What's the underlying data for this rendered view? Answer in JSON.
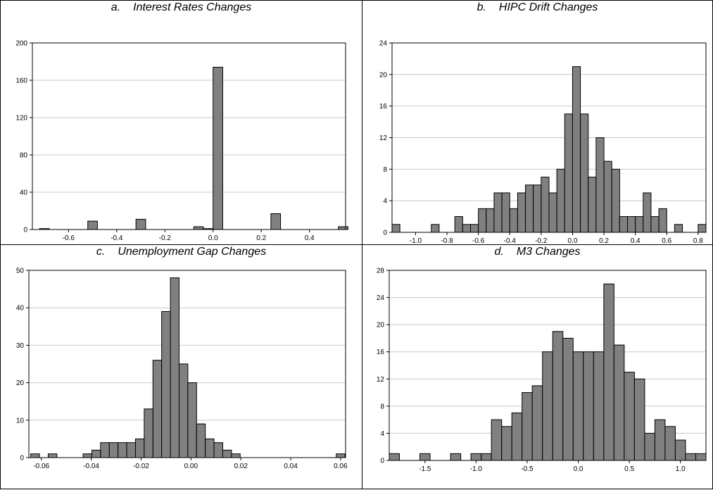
{
  "chart_data": [
    {
      "type": "bar",
      "panel_label": "a.",
      "title": "Interest Rates Changes",
      "xlim": [
        -0.75,
        0.55
      ],
      "ylim": [
        0,
        200
      ],
      "yticks": [
        0,
        40,
        80,
        120,
        160,
        200
      ],
      "xticks": [
        -0.6,
        -0.4,
        -0.2,
        0.0,
        0.2,
        0.4
      ],
      "xtick_labels": [
        "-0.6",
        "-0.4",
        "-0.2",
        "0.0",
        "0.2",
        "0.4"
      ],
      "bar_width": 0.04,
      "bars": [
        {
          "x": -0.7,
          "value": 1
        },
        {
          "x": -0.5,
          "value": 9
        },
        {
          "x": -0.3,
          "value": 0
        },
        {
          "x": -0.3,
          "value": 11
        },
        {
          "x": -0.06,
          "value": 3
        },
        {
          "x": -0.02,
          "value": 1
        },
        {
          "x": 0.02,
          "value": 174
        },
        {
          "x": 0.26,
          "value": 17
        },
        {
          "x": 0.54,
          "value": 3
        }
      ],
      "grid": true
    },
    {
      "type": "bar",
      "panel_label": "b.",
      "title": "HIPC Drift Changes",
      "xlim": [
        -1.15,
        0.85
      ],
      "ylim": [
        0,
        24
      ],
      "yticks": [
        0,
        4,
        8,
        12,
        16,
        20,
        24
      ],
      "xticks": [
        -1.0,
        -0.8,
        -0.6,
        -0.4,
        -0.2,
        0.0,
        0.2,
        0.4,
        0.6,
        0.8
      ],
      "xtick_labels": [
        "-1.0",
        "-0.8",
        "-0.6",
        "-0.4",
        "-0.2",
        "0.0",
        "0.2",
        "0.4",
        "0.6",
        "0.8"
      ],
      "bar_width": 0.05,
      "bars": [
        {
          "x": -1.125,
          "value": 1
        },
        {
          "x": -0.875,
          "value": 1
        },
        {
          "x": -0.725,
          "value": 2
        },
        {
          "x": -0.675,
          "value": 1
        },
        {
          "x": -0.625,
          "value": 1
        },
        {
          "x": -0.575,
          "value": 3
        },
        {
          "x": -0.525,
          "value": 3
        },
        {
          "x": -0.475,
          "value": 5
        },
        {
          "x": -0.425,
          "value": 5
        },
        {
          "x": -0.375,
          "value": 3
        },
        {
          "x": -0.325,
          "value": 5
        },
        {
          "x": -0.275,
          "value": 6
        },
        {
          "x": -0.225,
          "value": 6
        },
        {
          "x": -0.175,
          "value": 7
        },
        {
          "x": -0.125,
          "value": 5
        },
        {
          "x": -0.075,
          "value": 8
        },
        {
          "x": -0.025,
          "value": 15
        },
        {
          "x": 0.025,
          "value": 21
        },
        {
          "x": 0.075,
          "value": 15
        },
        {
          "x": 0.125,
          "value": 7
        },
        {
          "x": 0.175,
          "value": 12
        },
        {
          "x": 0.225,
          "value": 9
        },
        {
          "x": 0.275,
          "value": 8
        },
        {
          "x": 0.325,
          "value": 2
        },
        {
          "x": 0.375,
          "value": 2
        },
        {
          "x": 0.425,
          "value": 2
        },
        {
          "x": 0.475,
          "value": 5
        },
        {
          "x": 0.525,
          "value": 2
        },
        {
          "x": 0.575,
          "value": 3
        },
        {
          "x": 0.675,
          "value": 1
        },
        {
          "x": 0.825,
          "value": 1
        }
      ],
      "grid": true
    },
    {
      "type": "bar",
      "panel_label": "c.",
      "title": "Unemployment Gap Changes",
      "xlim": [
        -0.065,
        0.062
      ],
      "ylim": [
        0,
        50
      ],
      "yticks": [
        0,
        10,
        20,
        30,
        40,
        50
      ],
      "xticks": [
        -0.06,
        -0.04,
        -0.02,
        0.0,
        0.02,
        0.04,
        0.06
      ],
      "xtick_labels": [
        "-0.06",
        "-0.04",
        "-0.02",
        "0.00",
        "0.02",
        "0.04",
        "0.06"
      ],
      "bar_width": 0.0035,
      "bars": [
        {
          "x": -0.0625,
          "value": 1
        },
        {
          "x": -0.0555,
          "value": 1
        },
        {
          "x": -0.0485,
          "value": 0
        },
        {
          "x": -0.0415,
          "value": 1
        },
        {
          "x": -0.038,
          "value": 2
        },
        {
          "x": -0.0345,
          "value": 4
        },
        {
          "x": -0.031,
          "value": 4
        },
        {
          "x": -0.0275,
          "value": 4
        },
        {
          "x": -0.024,
          "value": 4
        },
        {
          "x": -0.0205,
          "value": 5
        },
        {
          "x": -0.017,
          "value": 13
        },
        {
          "x": -0.0135,
          "value": 26
        },
        {
          "x": -0.01,
          "value": 39
        },
        {
          "x": -0.0065,
          "value": 48
        },
        {
          "x": -0.003,
          "value": 25
        },
        {
          "x": 0.0005,
          "value": 20
        },
        {
          "x": 0.004,
          "value": 9
        },
        {
          "x": 0.0075,
          "value": 5
        },
        {
          "x": 0.011,
          "value": 4
        },
        {
          "x": 0.0145,
          "value": 2
        },
        {
          "x": 0.018,
          "value": 1
        },
        {
          "x": 0.06,
          "value": 1
        }
      ],
      "grid": true
    },
    {
      "type": "bar",
      "panel_label": "d.",
      "title": "M3 Changes",
      "xlim": [
        -1.85,
        1.25
      ],
      "ylim": [
        0,
        28
      ],
      "yticks": [
        0,
        4,
        8,
        12,
        16,
        20,
        24,
        28
      ],
      "xticks": [
        -1.5,
        -1.0,
        -0.5,
        0.0,
        0.5,
        1.0
      ],
      "xtick_labels": [
        "-1.5",
        "-1.0",
        "-0.5",
        "0.0",
        "0.5",
        "1.0"
      ],
      "bar_width": 0.1,
      "bars": [
        {
          "x": -1.8,
          "value": 1
        },
        {
          "x": -1.5,
          "value": 1
        },
        {
          "x": -1.2,
          "value": 1
        },
        {
          "x": -1.0,
          "value": 1
        },
        {
          "x": -0.9,
          "value": 1
        },
        {
          "x": -0.8,
          "value": 6
        },
        {
          "x": -0.7,
          "value": 5
        },
        {
          "x": -0.6,
          "value": 7
        },
        {
          "x": -0.5,
          "value": 10
        },
        {
          "x": -0.4,
          "value": 11
        },
        {
          "x": -0.3,
          "value": 16
        },
        {
          "x": -0.2,
          "value": 19
        },
        {
          "x": -0.1,
          "value": 18
        },
        {
          "x": 0.0,
          "value": 16
        },
        {
          "x": 0.1,
          "value": 16
        },
        {
          "x": 0.2,
          "value": 16
        },
        {
          "x": 0.3,
          "value": 26
        },
        {
          "x": 0.4,
          "value": 17
        },
        {
          "x": 0.5,
          "value": 13
        },
        {
          "x": 0.6,
          "value": 12
        },
        {
          "x": 0.7,
          "value": 4
        },
        {
          "x": 0.8,
          "value": 6
        },
        {
          "x": 0.9,
          "value": 5
        },
        {
          "x": 1.0,
          "value": 3
        },
        {
          "x": 1.1,
          "value": 1
        },
        {
          "x": 1.2,
          "value": 1
        }
      ],
      "grid": true
    }
  ],
  "colors": {
    "bar_fill": "#808080",
    "bar_stroke": "#000000",
    "grid": "#c8c8c8",
    "frame": "#000000"
  }
}
